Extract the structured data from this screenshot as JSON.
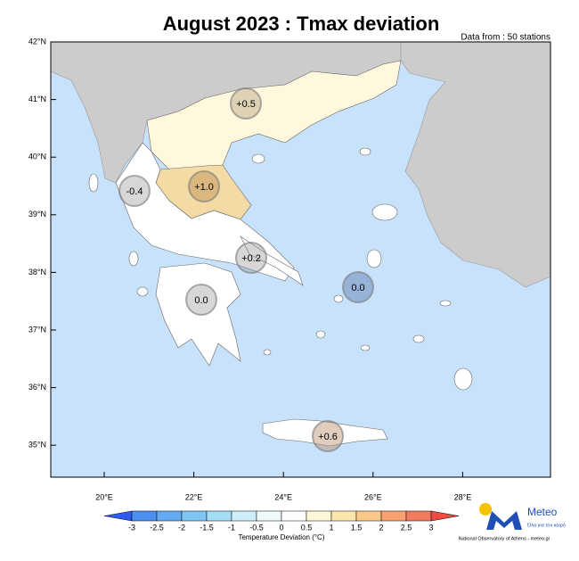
{
  "title": "August 2023 : Tmax deviation",
  "subtitle": "Data from : 50 stations",
  "lat_labels": [
    "42°N",
    "41°N",
    "40°N",
    "39°N",
    "38°N",
    "37°N",
    "36°N",
    "35°N"
  ],
  "lon_labels": [
    "20°E",
    "22°E",
    "24°E",
    "26°E",
    "28°E"
  ],
  "regions": [
    {
      "label": "+0.5"
    },
    {
      "label": "-0.4"
    },
    {
      "label": "+1.0"
    },
    {
      "label": "+0.2"
    },
    {
      "label": "0.0"
    },
    {
      "label": "0.0"
    },
    {
      "label": "+0.6"
    }
  ],
  "colorbar": {
    "ticks": [
      "-3",
      "-2.5",
      "-2",
      "-1.5",
      "-1",
      "-0.5",
      "0",
      "0.5",
      "1",
      "1.5",
      "2",
      "2.5",
      "3"
    ],
    "colors": [
      "#2f5cf0",
      "#4a8ff0",
      "#63aaf2",
      "#80c6f4",
      "#a4def6",
      "#cdeffa",
      "#f0fbfd",
      "#ffffff",
      "#fff6d6",
      "#fde6ae",
      "#fbc98a",
      "#f8a070",
      "#f27a5e",
      "#ee4b45"
    ],
    "label": "Temperature Deviation (°C)"
  },
  "logo": {
    "name": "Meteo",
    "tagline": "Όλα για τον καιρό",
    "credit": "National Observatory of Athens - meteo.gr"
  }
}
